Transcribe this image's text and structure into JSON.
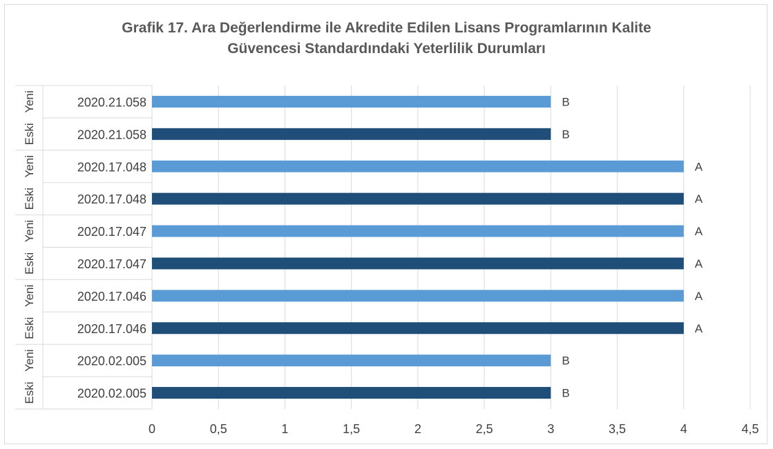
{
  "chart_data": {
    "type": "bar",
    "orientation": "horizontal",
    "title": "Grafik 17. Ara Değerlendirme ile Akredite Edilen Lisans Programlarının Kalite Güvencesi Standardındaki Yeterlilik Durumları",
    "title_lines": [
      "Grafik 17. Ara Değerlendirme ile Akredite Edilen Lisans Programlarının Kalite",
      "Güvencesi Standardındaki Yeterlilik Durumları"
    ],
    "xlim": [
      0,
      4.5
    ],
    "x_ticks": [
      "0",
      "0,5",
      "1",
      "1,5",
      "2",
      "2,5",
      "3",
      "3,5",
      "4",
      "4,5"
    ],
    "grid": true,
    "legend": "none",
    "colors": {
      "Yeni": "#5b9bd5",
      "Eski": "#1f4e79"
    },
    "bars": [
      {
        "category": "2020.21.058",
        "group": "Yeni",
        "value": 3,
        "label": "B"
      },
      {
        "category": "2020.21.058",
        "group": "Eski",
        "value": 3,
        "label": "B"
      },
      {
        "category": "2020.17.048",
        "group": "Yeni",
        "value": 4,
        "label": "A"
      },
      {
        "category": "2020.17.048",
        "group": "Eski",
        "value": 4,
        "label": "A"
      },
      {
        "category": "2020.17.047",
        "group": "Yeni",
        "value": 4,
        "label": "A"
      },
      {
        "category": "2020.17.047",
        "group": "Eski",
        "value": 4,
        "label": "A"
      },
      {
        "category": "2020.17.046",
        "group": "Yeni",
        "value": 4,
        "label": "A"
      },
      {
        "category": "2020.17.046",
        "group": "Eski",
        "value": 4,
        "label": "A"
      },
      {
        "category": "2020.02.005",
        "group": "Yeni",
        "value": 3,
        "label": "B"
      },
      {
        "category": "2020.02.005",
        "group": "Eski",
        "value": 3,
        "label": "B"
      }
    ]
  }
}
